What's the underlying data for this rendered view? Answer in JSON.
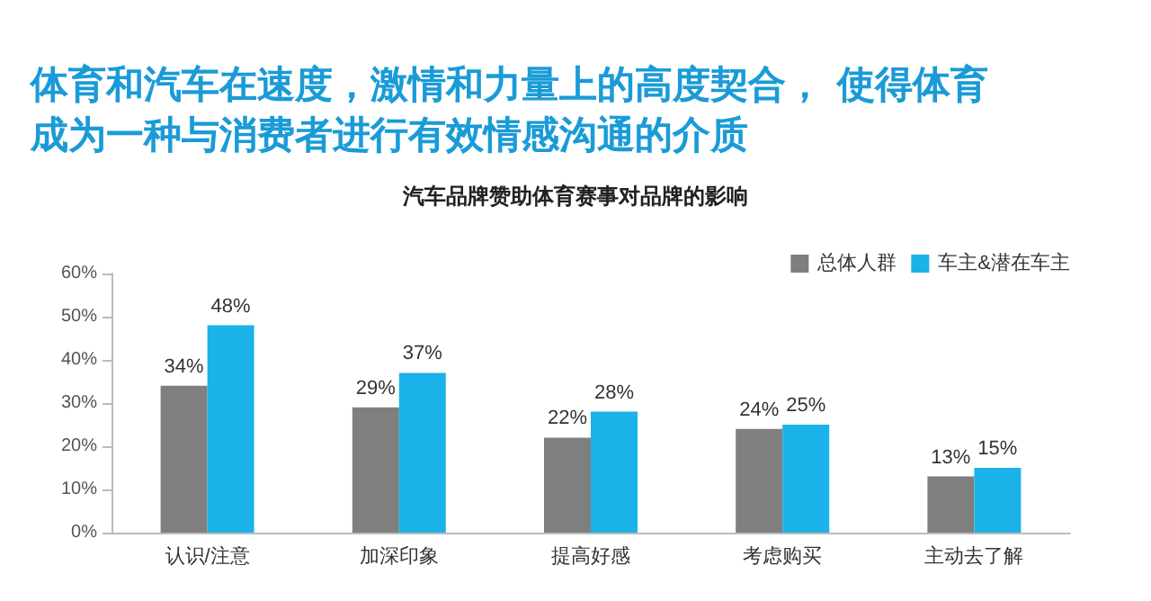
{
  "chart_data": {
    "type": "bar",
    "title": "体育和汽车在速度，激情和力量上的高度契合， 使得体育成为一种与消费者进行有效情感沟通的介质",
    "subtitle": "汽车品牌赞助体育赛事对品牌的影响",
    "categories": [
      "认识/注意",
      "加深印象",
      "提高好感",
      "考虑购买",
      "主动去了解"
    ],
    "series": [
      {
        "name": "总体人群",
        "color": "#7f7f7f",
        "values": [
          34,
          29,
          22,
          24,
          13
        ],
        "value_labels": [
          "34%",
          "29%",
          "22%",
          "24%",
          "13%"
        ]
      },
      {
        "name": "车主&潜在车主",
        "color": "#1ab2e8",
        "values": [
          48,
          37,
          28,
          25,
          15
        ],
        "value_labels": [
          "48%",
          "37%",
          "28%",
          "25%",
          "15%"
        ]
      }
    ],
    "ylim": [
      0,
      60
    ],
    "yticks": [
      {
        "value": 0,
        "label": "0%"
      },
      {
        "value": 10,
        "label": "10%"
      },
      {
        "value": 20,
        "label": "20%"
      },
      {
        "value": 30,
        "label": "30%"
      },
      {
        "value": 40,
        "label": "40%"
      },
      {
        "value": 50,
        "label": "50%"
      },
      {
        "value": 60,
        "label": "60%"
      }
    ],
    "grid": false,
    "legend": "top right"
  }
}
